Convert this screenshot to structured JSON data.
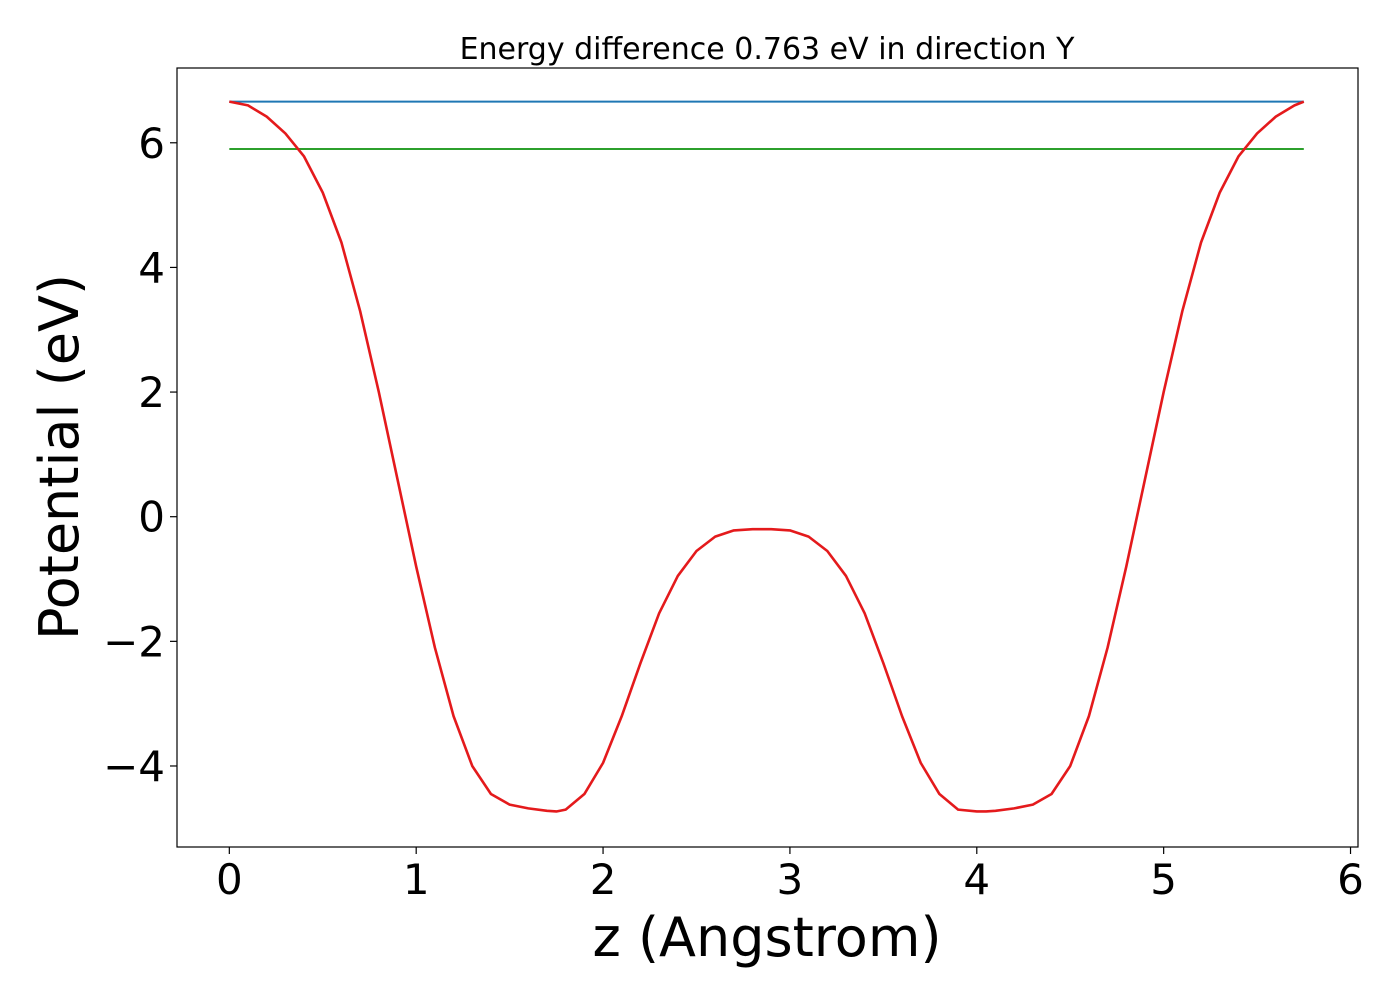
{
  "chart_data": {
    "type": "line",
    "title": "Energy difference 0.763 eV in direction Y",
    "xlabel": "z (Angstrom)",
    "ylabel": "Potential (eV)",
    "xlim": [
      -0.28,
      6.04
    ],
    "ylim": [
      -5.3,
      7.2
    ],
    "x_ticks": [
      0,
      1,
      2,
      3,
      4,
      5,
      6
    ],
    "x_tick_labels": [
      "0",
      "1",
      "2",
      "3",
      "4",
      "5",
      "6"
    ],
    "y_ticks": [
      -4,
      -2,
      0,
      2,
      4,
      6
    ],
    "y_tick_labels": [
      "−4",
      "−2",
      "0",
      "2",
      "4",
      "6"
    ],
    "grid": false,
    "legend": "none",
    "series": [
      {
        "color": "#1f77b4",
        "x": [
          0,
          5.75
        ],
        "y": [
          6.66,
          6.66
        ]
      },
      {
        "color": "#2ca02c",
        "x": [
          0,
          5.75
        ],
        "y": [
          5.9,
          5.9
        ]
      },
      {
        "color": "#e41a1c",
        "x": [
          0,
          0.1,
          0.2,
          0.3,
          0.4,
          0.5,
          0.6,
          0.7,
          0.8,
          0.9,
          1.0,
          1.1,
          1.2,
          1.3,
          1.4,
          1.5,
          1.6,
          1.7,
          1.75,
          1.8,
          1.9,
          2.0,
          2.1,
          2.2,
          2.3,
          2.4,
          2.5,
          2.6,
          2.7,
          2.8,
          2.9,
          3.0,
          3.1,
          3.2,
          3.3,
          3.4,
          3.5,
          3.6,
          3.7,
          3.8,
          3.9,
          4.0,
          4.05,
          4.1,
          4.2,
          4.3,
          4.4,
          4.5,
          4.6,
          4.7,
          4.8,
          4.9,
          5.0,
          5.1,
          5.2,
          5.3,
          5.4,
          5.5,
          5.6,
          5.7,
          5.75
        ],
        "y": [
          6.66,
          6.6,
          6.42,
          6.15,
          5.78,
          5.2,
          4.4,
          3.3,
          2.0,
          0.6,
          -0.8,
          -2.1,
          -3.2,
          -4.0,
          -4.45,
          -4.62,
          -4.68,
          -4.72,
          -4.73,
          -4.7,
          -4.45,
          -3.95,
          -3.2,
          -2.35,
          -1.55,
          -0.95,
          -0.55,
          -0.32,
          -0.22,
          -0.2,
          -0.2,
          -0.22,
          -0.32,
          -0.55,
          -0.95,
          -1.55,
          -2.35,
          -3.2,
          -3.95,
          -4.45,
          -4.7,
          -4.73,
          -4.73,
          -4.72,
          -4.68,
          -4.62,
          -4.45,
          -4.0,
          -3.2,
          -2.1,
          -0.8,
          0.6,
          2.0,
          3.3,
          4.4,
          5.2,
          5.78,
          6.15,
          6.42,
          6.6,
          6.66
        ]
      }
    ]
  }
}
